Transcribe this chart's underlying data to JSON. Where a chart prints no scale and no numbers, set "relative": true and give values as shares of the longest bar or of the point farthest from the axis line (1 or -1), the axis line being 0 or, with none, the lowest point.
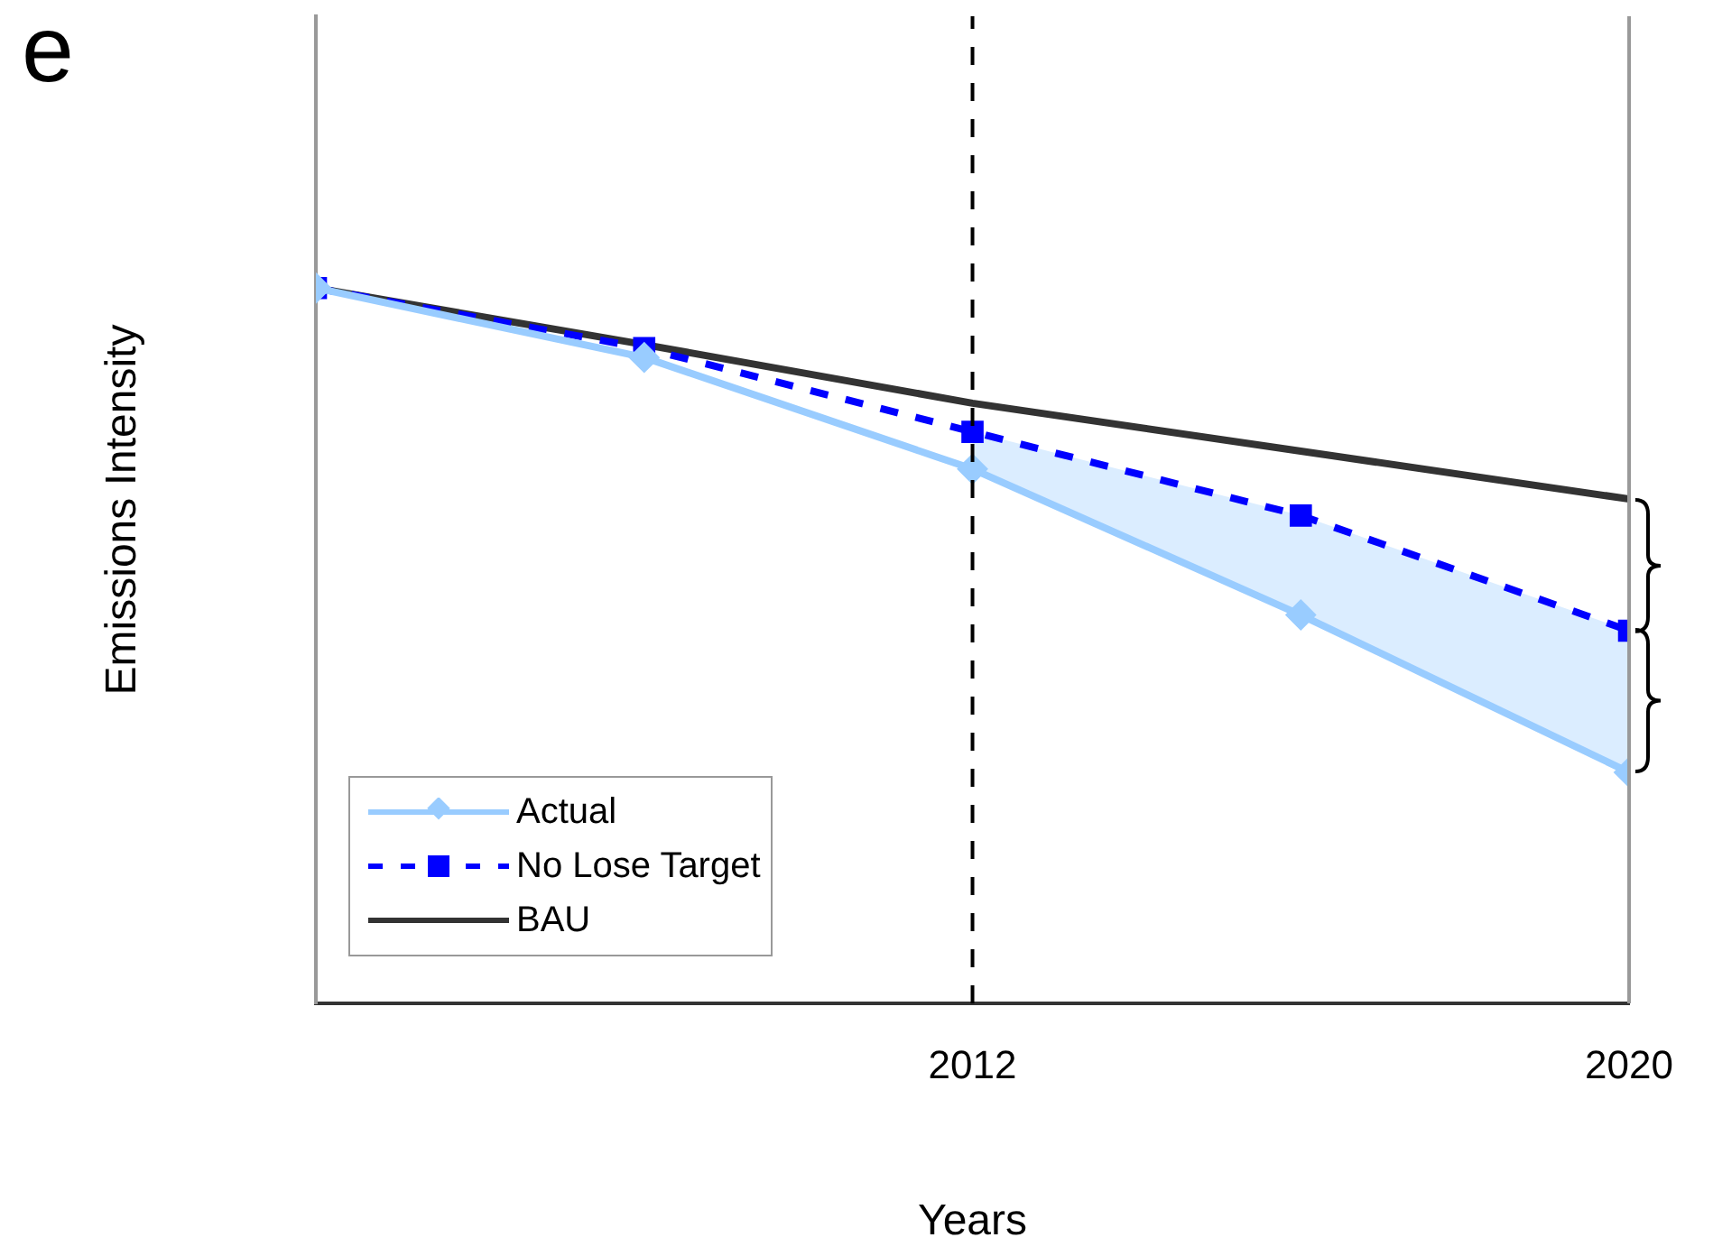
{
  "chart_data": {
    "type": "line",
    "relative": true,
    "xlabel": "Years",
    "ylabel": "Emissions Intensity",
    "annotations": [
      "e"
    ],
    "x": [
      2004,
      2008,
      2012,
      2016,
      2020
    ],
    "xlim": [
      2004,
      2020
    ],
    "xticks": [
      2012,
      2020
    ],
    "grid": false,
    "legend": "bottom left",
    "series": [
      {
        "name": "Actual",
        "color": "#99ccff",
        "marker": "diamond",
        "line_style": "solid",
        "values": [
          1,
          0.903,
          0.747,
          0.543,
          0.323
        ],
        "lower": [
          null,
          null,
          0.747,
          0.543,
          0.323
        ],
        "upper": [
          null,
          null,
          0.799,
          0.682,
          0.521
        ]
      },
      {
        "name": "No Lose Target",
        "color": "#0000ff",
        "marker": "square",
        "line_style": "dashed",
        "values": [
          1,
          0.916,
          0.799,
          0.682,
          0.521
        ]
      },
      {
        "name": "BAU",
        "color": "#333333",
        "marker": "none",
        "line_style": "solid",
        "values": [
          1,
          0.921,
          0.839,
          0.772,
          0.705
        ]
      }
    ],
    "ref_lines": [
      {
        "axis": "x",
        "value": 2012,
        "color": "#000000",
        "line_style": "dashed"
      }
    ]
  }
}
